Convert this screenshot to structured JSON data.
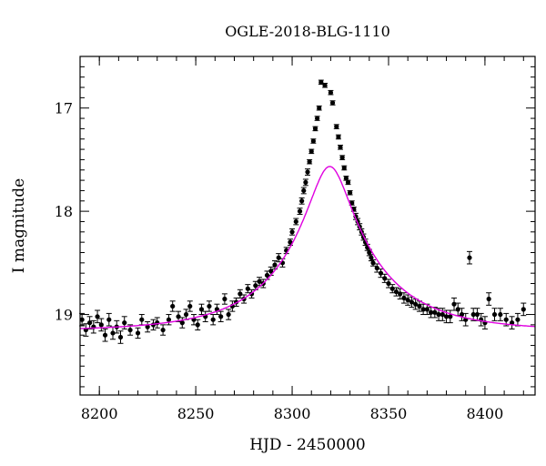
{
  "chart_data": {
    "type": "scatter",
    "title": "OGLE-2018-BLG-1110",
    "xlabel": "HJD - 2450000",
    "ylabel": "I magnitude",
    "xlim": [
      8190,
      8426
    ],
    "ylim": [
      19.78,
      16.5
    ],
    "y_inverted": true,
    "grid": false,
    "x_ticks": [
      8200,
      8250,
      8300,
      8350,
      8400
    ],
    "y_ticks": [
      17,
      18,
      19
    ],
    "model_color": "#e000e0",
    "point_color": "#000000",
    "model": {
      "name": "",
      "t0": 8319.5,
      "u0": 0.2,
      "tE": 50,
      "baseline": 19.16,
      "blend_fraction": 0.82
    },
    "series": [
      {
        "name": "",
        "x": [
          8191,
          8193,
          8195,
          8197,
          8199,
          8201,
          8203,
          8205,
          8207,
          8209,
          8211,
          8213,
          8216,
          8220,
          8222,
          8225,
          8228,
          8230,
          8233,
          8236,
          8238,
          8241,
          8243,
          8245,
          8247,
          8249,
          8251,
          8253,
          8255,
          8257,
          8259,
          8261,
          8263,
          8265,
          8267,
          8269,
          8271,
          8273,
          8275,
          8277,
          8279,
          8281,
          8283,
          8285,
          8287,
          8289,
          8291,
          8293,
          8295,
          8297,
          8299,
          8300,
          8302,
          8304,
          8305,
          8306,
          8307,
          8308,
          8309,
          8310,
          8311,
          8312,
          8313,
          8314,
          8315,
          8317,
          8320,
          8321,
          8323,
          8324,
          8325,
          8326,
          8327,
          8328,
          8329,
          8330,
          8331,
          8332,
          8333,
          8334,
          8335,
          8336,
          8337,
          8338,
          8339,
          8340,
          8341,
          8342,
          8344,
          8346,
          8348,
          8350,
          8352,
          8354,
          8356,
          8358,
          8360,
          8362,
          8364,
          8366,
          8368,
          8370,
          8372,
          8374,
          8376,
          8378,
          8380,
          8382,
          8384,
          8386,
          8388,
          8390,
          8392,
          8394,
          8396,
          8398,
          8400,
          8402,
          8405,
          8408,
          8411,
          8414,
          8417,
          8420
        ],
        "y": [
          19.05,
          19.15,
          19.08,
          19.12,
          19.02,
          19.1,
          19.2,
          19.05,
          19.18,
          19.12,
          19.22,
          19.08,
          19.15,
          19.18,
          19.05,
          19.12,
          19.1,
          19.08,
          19.15,
          19.05,
          18.92,
          19.02,
          19.08,
          19.0,
          18.92,
          19.05,
          19.1,
          18.95,
          19.02,
          18.92,
          19.05,
          18.95,
          19.02,
          18.85,
          19.0,
          18.92,
          18.88,
          18.8,
          18.85,
          18.75,
          18.8,
          18.72,
          18.68,
          18.7,
          18.62,
          18.58,
          18.52,
          18.45,
          18.5,
          18.38,
          18.3,
          18.2,
          18.1,
          18.0,
          17.9,
          17.8,
          17.72,
          17.62,
          17.52,
          17.42,
          17.32,
          17.2,
          17.1,
          17.0,
          16.75,
          16.78,
          16.85,
          16.95,
          17.18,
          17.28,
          17.38,
          17.48,
          17.58,
          17.68,
          17.72,
          17.82,
          17.92,
          17.98,
          18.05,
          18.1,
          18.15,
          18.2,
          18.25,
          18.3,
          18.35,
          18.4,
          18.45,
          18.5,
          18.55,
          18.6,
          18.65,
          18.7,
          18.75,
          18.78,
          18.8,
          18.84,
          18.86,
          18.88,
          18.9,
          18.92,
          18.95,
          18.95,
          18.98,
          18.98,
          19.0,
          19.0,
          19.02,
          19.02,
          18.9,
          18.95,
          19.0,
          19.05,
          18.45,
          19.0,
          19.0,
          19.05,
          19.08,
          18.85,
          19.0,
          19.0,
          19.05,
          19.08,
          19.05,
          18.95
        ],
        "err": [
          0.06,
          0.06,
          0.06,
          0.06,
          0.06,
          0.06,
          0.06,
          0.06,
          0.06,
          0.06,
          0.06,
          0.06,
          0.05,
          0.05,
          0.05,
          0.05,
          0.05,
          0.05,
          0.05,
          0.05,
          0.05,
          0.05,
          0.05,
          0.05,
          0.05,
          0.05,
          0.05,
          0.05,
          0.05,
          0.05,
          0.05,
          0.05,
          0.05,
          0.05,
          0.05,
          0.05,
          0.04,
          0.04,
          0.04,
          0.04,
          0.04,
          0.04,
          0.04,
          0.04,
          0.04,
          0.04,
          0.04,
          0.04,
          0.04,
          0.03,
          0.03,
          0.03,
          0.03,
          0.03,
          0.03,
          0.03,
          0.03,
          0.03,
          0.02,
          0.02,
          0.02,
          0.02,
          0.02,
          0.02,
          0.02,
          0.02,
          0.02,
          0.02,
          0.02,
          0.02,
          0.02,
          0.02,
          0.02,
          0.02,
          0.02,
          0.02,
          0.02,
          0.02,
          0.03,
          0.03,
          0.03,
          0.03,
          0.03,
          0.03,
          0.03,
          0.03,
          0.03,
          0.03,
          0.04,
          0.04,
          0.04,
          0.04,
          0.04,
          0.04,
          0.05,
          0.05,
          0.05,
          0.05,
          0.05,
          0.05,
          0.05,
          0.05,
          0.05,
          0.05,
          0.06,
          0.06,
          0.06,
          0.06,
          0.06,
          0.06,
          0.06,
          0.06,
          0.06,
          0.06,
          0.06,
          0.06,
          0.06,
          0.06,
          0.06,
          0.06,
          0.06,
          0.06,
          0.06,
          0.06
        ]
      }
    ]
  }
}
